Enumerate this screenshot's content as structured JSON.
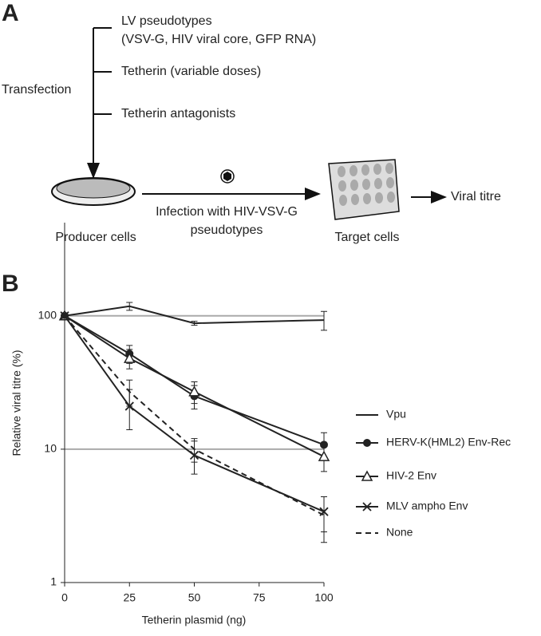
{
  "panel_a": {
    "label": "A",
    "inputs": [
      "LV pseudotypes",
      "(VSV-G, HIV viral core, GFP RNA)",
      "Tetherin (variable doses)",
      "Tetherin antagonists"
    ],
    "step": "Transfection",
    "infection": [
      "Infection with HIV-VSV-G",
      "pseudotypes"
    ],
    "producer": "Producer cells",
    "target": "Target cells",
    "output": "Viral titre"
  },
  "panel_b": {
    "label": "B"
  },
  "chart_data": {
    "type": "line",
    "x_label": "Tetherin plasmid (ng)",
    "y_label": "Relative viral titre (%)",
    "x": [
      0,
      25,
      50,
      100
    ],
    "xlim": [
      0,
      100
    ],
    "xticks": [
      0,
      25,
      50,
      75,
      100
    ],
    "ylim": [
      1,
      500
    ],
    "yticks": [
      1,
      10,
      100
    ],
    "log_y": true,
    "grid": true,
    "legend": "right",
    "series": [
      {
        "name": "Vpu",
        "color": "#222222",
        "marker": null,
        "dash": false,
        "values": [
          100,
          118,
          88,
          93
        ],
        "errors": [
          null,
          8,
          3,
          15
        ]
      },
      {
        "name": "HERV-K(HML2) Env-Rec",
        "color": "#222222",
        "marker": "circle",
        "dash": false,
        "values": [
          100,
          52,
          25,
          10.8
        ],
        "errors": [
          null,
          8,
          5,
          2.5
        ]
      },
      {
        "name": "HIV-2 Env",
        "color": "#222222",
        "marker": "triangle",
        "dash": false,
        "values": [
          100,
          48,
          27,
          8.8
        ],
        "errors": [
          null,
          8,
          5,
          2
        ]
      },
      {
        "name": "MLV ampho Env",
        "color": "#222222",
        "marker": "x",
        "dash": false,
        "values": [
          100,
          21,
          9,
          3.4
        ],
        "errors": [
          null,
          7,
          2.5,
          1
        ]
      },
      {
        "name": "None",
        "color": "#222222",
        "marker": null,
        "dash": true,
        "values": [
          100,
          27,
          10,
          3.2
        ],
        "errors": [
          null,
          6,
          2,
          1.2
        ]
      }
    ]
  }
}
